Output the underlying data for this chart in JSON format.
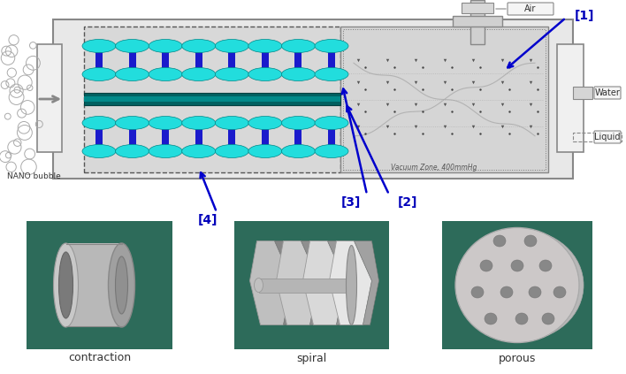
{
  "labels": {
    "nano_bubble": "NANO bubble",
    "air": "Air",
    "water": "Water",
    "liquid": "Liquid",
    "vacuum": "Vacuum Zone, 400mmHg",
    "label1": "[1]",
    "label2": "[2]",
    "label3": "[3]",
    "label4": "[4]",
    "contraction": "contraction",
    "spiral": "spiral",
    "porous": "porous"
  },
  "colors": {
    "bg": "#f0f0f0",
    "main_body": "#e0e0e0",
    "main_edge": "#888888",
    "flange": "#d0d0d0",
    "left_inner": "#d5d5d5",
    "right_inner": "#d8d8d8",
    "cyan_fill": "#22dddd",
    "cyan_edge": "#008888",
    "blue_bar": "#1a1acc",
    "teal_pipe": "#006666",
    "teal_pipe_light": "#009999",
    "arrow_blue": "#0000cc",
    "text_blue": "#0000bb",
    "text_dark": "#333333",
    "img_teal": "#2d6b5a",
    "contraction_fill": "#b8b8b8",
    "contraction_edge": "#888888",
    "porous_fill": "#c8c8c8",
    "hole_fill": "#888888",
    "spiral_fill": "#c0c0c0",
    "air_pipe": "#cccccc",
    "air_pipe_edge": "#888888",
    "water_pipe": "#cccccc",
    "bubble_edge": "#999999"
  }
}
